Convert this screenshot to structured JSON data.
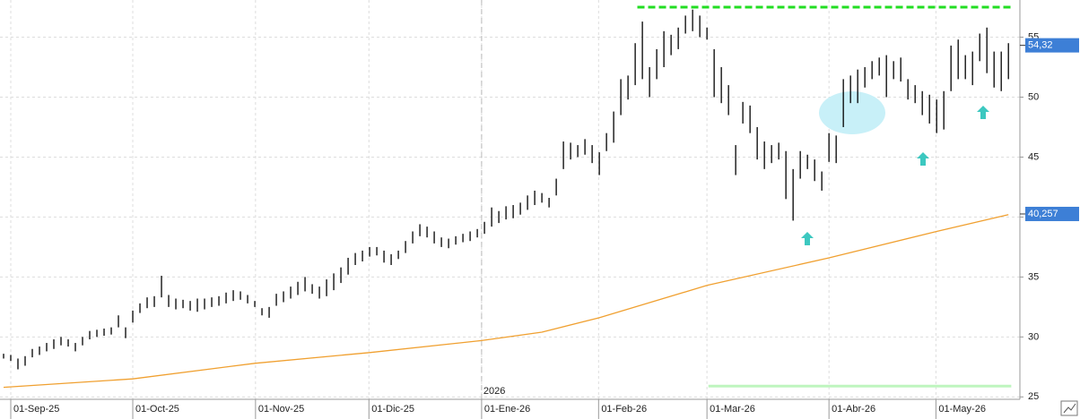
{
  "chart_data": {
    "type": "ohlc",
    "price_color": "#000000",
    "low": [
      28.2,
      28.0,
      27.3,
      27.6,
      28.3,
      28.5,
      28.8,
      29.0,
      29.3,
      29.2,
      28.8,
      29.3,
      29.8,
      30.0,
      30.1,
      30.2,
      30.8,
      29.9,
      31.2,
      32.0,
      32.4,
      32.5,
      33.3,
      32.5,
      32.3,
      32.4,
      32.2,
      32.1,
      32.3,
      32.5,
      32.6,
      32.8,
      33.0,
      33.1,
      32.8,
      32.5,
      31.8,
      31.6,
      32.6,
      32.9,
      33.2,
      33.5,
      33.8,
      33.6,
      33.2,
      33.4,
      33.9,
      34.5,
      35.2,
      36.0,
      36.3,
      36.7,
      36.8,
      36.2,
      36.0,
      36.5,
      37.0,
      37.8,
      38.4,
      38.3,
      37.8,
      37.5,
      37.4,
      37.7,
      37.9,
      38.0,
      38.3,
      38.6,
      39.2,
      39.5,
      39.8,
      39.9,
      40.2,
      40.6,
      41.0,
      41.2,
      40.8,
      41.8,
      44.0,
      44.8,
      45.0,
      45.2,
      44.5,
      43.5,
      45.5,
      46.2,
      48.5,
      49.8,
      51.0,
      51.5,
      50.0,
      51.5,
      52.5,
      53.5,
      54.0,
      55.3,
      55.5,
      55.0,
      54.8,
      50.0,
      49.5,
      48.5,
      43.5,
      47.8,
      47.0,
      44.8,
      44.0,
      44.5,
      44.8,
      41.5,
      39.7,
      43.2,
      44.0,
      43.0,
      42.2,
      44.6,
      44.5,
      47.5,
      49.5,
      49.5,
      50.8,
      51.5,
      51.8,
      50.0,
      51.5,
      51.3,
      49.8,
      49.5,
      48.5,
      47.8,
      47.0,
      47.3,
      50.5,
      51.5,
      51.5,
      51.0,
      53.0,
      52.0,
      50.8,
      50.5,
      51.5
    ],
    "high": [
      28.6,
      28.5,
      28.2,
      28.4,
      29.0,
      29.2,
      29.5,
      29.8,
      30.0,
      29.8,
      29.5,
      30.0,
      30.5,
      30.6,
      30.7,
      30.8,
      31.8,
      30.8,
      32.2,
      32.8,
      33.3,
      33.4,
      35.1,
      33.5,
      33.2,
      33.1,
      33.0,
      33.2,
      33.2,
      33.3,
      33.4,
      33.7,
      33.9,
      33.8,
      33.5,
      33.0,
      32.4,
      32.5,
      33.6,
      33.8,
      34.2,
      34.6,
      35.0,
      34.4,
      34.2,
      34.8,
      35.3,
      35.8,
      36.6,
      37.0,
      37.2,
      37.5,
      37.5,
      37.2,
      36.9,
      37.2,
      38.0,
      38.8,
      39.4,
      39.2,
      38.8,
      38.3,
      38.2,
      38.4,
      38.6,
      38.8,
      39.0,
      39.6,
      40.8,
      40.5,
      40.9,
      41.0,
      41.2,
      41.8,
      42.2,
      42.0,
      41.6,
      43.2,
      46.3,
      46.2,
      46.0,
      46.5,
      46.0,
      45.4,
      47.0,
      48.8,
      51.5,
      51.8,
      54.5,
      56.3,
      52.5,
      54.0,
      55.5,
      55.2,
      55.8,
      56.8,
      57.3,
      56.8,
      55.8,
      54.0,
      52.5,
      51.0,
      46.0,
      49.6,
      49.3,
      47.5,
      46.3,
      46.0,
      46.2,
      45.5,
      44.0,
      45.5,
      45.2,
      44.8,
      43.8,
      47.0,
      46.8,
      51.5,
      51.8,
      52.3,
      52.5,
      53.0,
      53.3,
      53.5,
      53.0,
      53.3,
      51.5,
      51.0,
      50.5,
      50.2,
      49.8,
      50.5,
      54.3,
      54.8,
      53.5,
      53.8,
      55.3,
      55.8,
      53.8,
      53.8,
      54.5
    ],
    "last_price": {
      "value": 54.32,
      "label": "54,32"
    },
    "ma": {
      "color": "#f0a030",
      "x": [
        0,
        18,
        35,
        51,
        66.6,
        75,
        83,
        98,
        115,
        130,
        140
      ],
      "values": [
        25.8,
        26.5,
        27.8,
        28.7,
        29.7,
        30.4,
        31.6,
        34.3,
        36.6,
        38.8,
        40.2
      ],
      "last": {
        "value": 40.257,
        "label": "40,257"
      }
    },
    "levels": [
      {
        "value": 57.5,
        "from": 88.3,
        "to": 140.4,
        "color": "#22dd22",
        "dash": true
      },
      {
        "value": 25.9,
        "from": 98.2,
        "to": 140.4,
        "color": "#bff5bf",
        "dash": false
      }
    ],
    "ylim": [
      24.8,
      58.1
    ],
    "yticks": [
      25,
      30,
      35,
      40,
      45,
      50,
      55
    ],
    "xlim": [
      -0.5,
      141.6
    ],
    "xticks": [
      {
        "value": 1,
        "label": "01-Sep-25"
      },
      {
        "value": 18,
        "label": "01-Oct-25"
      },
      {
        "value": 35.1,
        "label": "01-Nov-25"
      },
      {
        "value": 50.9,
        "label": "01-Dic-25"
      },
      {
        "value": 66.6,
        "label": "01-Ene-26"
      },
      {
        "value": 82.9,
        "label": "01-Feb-26"
      },
      {
        "value": 98,
        "label": "01-Mar-26"
      },
      {
        "value": 115,
        "label": "01-Abr-26"
      },
      {
        "value": 129.9,
        "label": "01-May-26"
      }
    ],
    "year_marker": {
      "value": 66.6,
      "label": "2026"
    },
    "grid": true
  }
}
